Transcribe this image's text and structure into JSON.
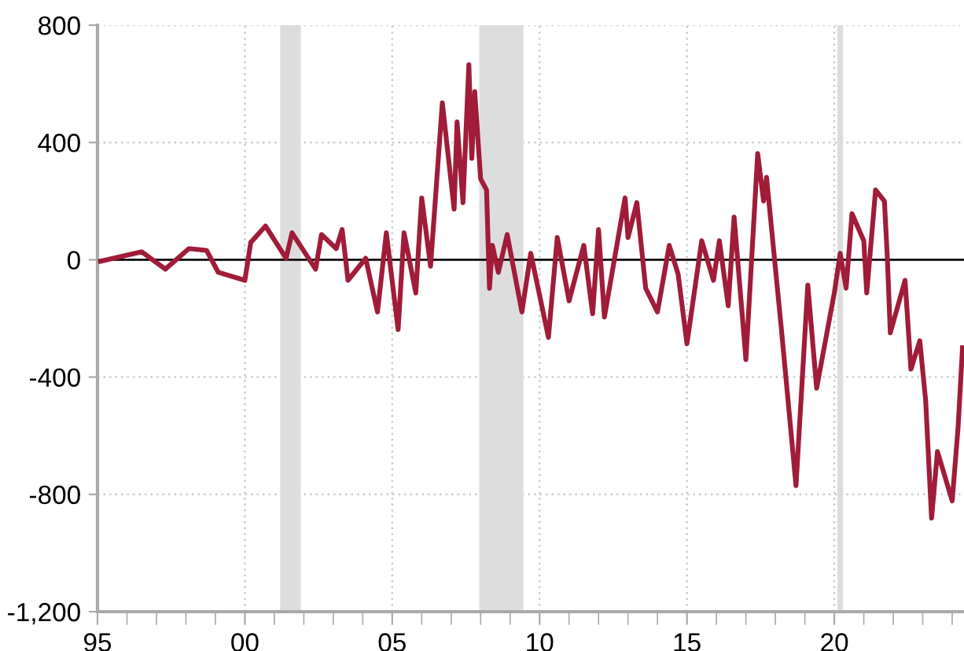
{
  "chart_data": {
    "type": "line",
    "x": [
      1995.1,
      1996.5,
      1997.3,
      1998.1,
      1998.7,
      1999.1,
      2000.0,
      2000.2,
      2000.7,
      2001.4,
      2001.6,
      2002.4,
      2002.6,
      2003.1,
      2003.3,
      2003.5,
      2004.1,
      2004.5,
      2004.8,
      2005.2,
      2005.4,
      2005.8,
      2006.0,
      2006.3,
      2006.7,
      2007.1,
      2007.2,
      2007.4,
      2007.6,
      2007.7,
      2007.8,
      2008.0,
      2008.2,
      2008.3,
      2008.4,
      2008.6,
      2008.9,
      2009.4,
      2009.7,
      2010.3,
      2010.6,
      2011.0,
      2011.5,
      2011.8,
      2012.0,
      2012.2,
      2012.9,
      2013.0,
      2013.3,
      2013.6,
      2014.0,
      2014.4,
      2014.7,
      2015.0,
      2015.5,
      2015.9,
      2016.1,
      2016.4,
      2016.6,
      2017.0,
      2017.4,
      2017.6,
      2017.7,
      2018.2,
      2018.7,
      2019.1,
      2019.4,
      2020.0,
      2020.2,
      2020.4,
      2020.6,
      2021.0,
      2021.1,
      2021.4,
      2021.7,
      2021.8,
      2021.9,
      2022.4,
      2022.6,
      2022.9,
      2023.1,
      2023.3,
      2023.5,
      2024.0,
      2024.2,
      2024.35
    ],
    "series": [
      {
        "color": "#a01c38",
        "values": [
          -5,
          27,
          -32,
          38,
          32,
          -43,
          -70,
          59,
          115,
          5,
          92,
          -32,
          86,
          38,
          103,
          -70,
          5,
          -178,
          92,
          -238,
          92,
          -113,
          211,
          -22,
          535,
          173,
          470,
          195,
          665,
          346,
          573,
          276,
          238,
          -97,
          49,
          -43,
          86,
          -178,
          22,
          -265,
          76,
          -140,
          49,
          -184,
          103,
          -195,
          211,
          76,
          195,
          -97,
          -178,
          49,
          -49,
          -286,
          65,
          -70,
          65,
          -157,
          146,
          -340,
          362,
          200,
          281,
          -232,
          -770,
          -86,
          -438,
          -113,
          22,
          -97,
          157,
          65,
          -113,
          238,
          200,
          5,
          -249,
          -70,
          -373,
          -276,
          -481,
          -881,
          -654,
          -822,
          -570,
          -300
        ]
      }
    ],
    "xlim": [
      1995,
      2024.4
    ],
    "xticks": [
      {
        "value": 1995,
        "label": "95"
      },
      {
        "value": 1996,
        "label": null
      },
      {
        "value": 1997,
        "label": null
      },
      {
        "value": 1998,
        "label": null
      },
      {
        "value": 1999,
        "label": null
      },
      {
        "value": 2000,
        "label": "00"
      },
      {
        "value": 2001,
        "label": null
      },
      {
        "value": 2002,
        "label": null
      },
      {
        "value": 2003,
        "label": null
      },
      {
        "value": 2004,
        "label": null
      },
      {
        "value": 2005,
        "label": "05"
      },
      {
        "value": 2006,
        "label": null
      },
      {
        "value": 2007,
        "label": null
      },
      {
        "value": 2008,
        "label": null
      },
      {
        "value": 2009,
        "label": null
      },
      {
        "value": 2010,
        "label": "10"
      },
      {
        "value": 2011,
        "label": null
      },
      {
        "value": 2012,
        "label": null
      },
      {
        "value": 2013,
        "label": null
      },
      {
        "value": 2014,
        "label": null
      },
      {
        "value": 2015,
        "label": "15"
      },
      {
        "value": 2016,
        "label": null
      },
      {
        "value": 2017,
        "label": null
      },
      {
        "value": 2018,
        "label": null
      },
      {
        "value": 2019,
        "label": null
      },
      {
        "value": 2020,
        "label": "20"
      },
      {
        "value": 2021,
        "label": null
      },
      {
        "value": 2022,
        "label": null
      },
      {
        "value": 2023,
        "label": null
      },
      {
        "value": 2024,
        "label": null
      }
    ],
    "ylim": [
      -1200,
      800
    ],
    "yticks": [
      {
        "value": 800,
        "label": "800"
      },
      {
        "value": 400,
        "label": "400"
      },
      {
        "value": 0,
        "label": "0"
      },
      {
        "value": -400,
        "label": "-400"
      },
      {
        "value": -800,
        "label": "-800"
      },
      {
        "value": -1200,
        "label": "-1,200"
      }
    ],
    "ref_lines": [
      {
        "axis": "y",
        "value": 0,
        "color": "#000000"
      }
    ],
    "bands": [
      {
        "axis": "x",
        "from": 2001.2,
        "to": 2001.9,
        "color": "#dddddd"
      },
      {
        "axis": "x",
        "from": 2007.95,
        "to": 2009.45,
        "color": "#dddddd"
      },
      {
        "axis": "x",
        "from": 2020.1,
        "to": 2020.3,
        "color": "#dddddd"
      }
    ],
    "grid": true,
    "legend": false,
    "marker": "none",
    "line_style": "solid"
  }
}
